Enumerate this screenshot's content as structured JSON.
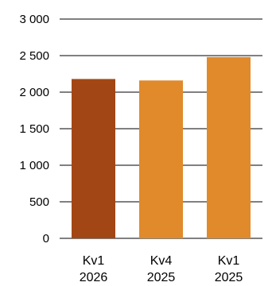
{
  "chart_data": {
    "type": "bar",
    "categories": [
      [
        "Kv1",
        "2026"
      ],
      [
        "Kv4",
        "2025"
      ],
      [
        "Kv1",
        "2025"
      ]
    ],
    "values": [
      2180,
      2160,
      2480
    ],
    "bar_colors": [
      "#A34615",
      "#E08A2B",
      "#E08A2B"
    ],
    "ylim": [
      0,
      3000
    ],
    "yticks": [
      {
        "value": 0,
        "label": "0"
      },
      {
        "value": 500,
        "label": "500"
      },
      {
        "value": 1000,
        "label": "1 000"
      },
      {
        "value": 1500,
        "label": "1 500"
      },
      {
        "value": 2000,
        "label": "2 000"
      },
      {
        "value": 2500,
        "label": "2 500"
      },
      {
        "value": 3000,
        "label": "3 000"
      }
    ],
    "grid": true,
    "gridline_color": "#000000",
    "title": "",
    "xlabel": "",
    "ylabel": ""
  }
}
